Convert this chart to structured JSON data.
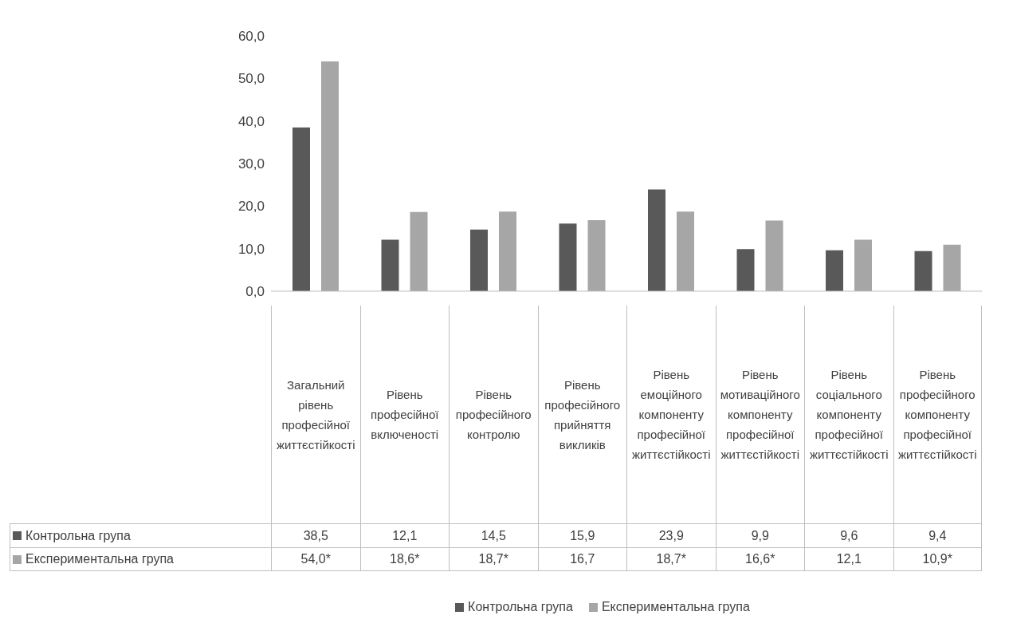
{
  "chart_data": {
    "type": "bar",
    "categories": [
      "Загальний рівень професійної життєстійкості",
      "Рівень професійної включеності",
      "Рівень професійного контролю",
      "Рівень професійного прийняття викликів",
      "Рівень емоційного компоненту професійної життєстійкості",
      "Рівень мотиваційного компоненту професійної життєстійкості",
      "Рівень соціального компоненту професійної життєстійкості",
      "Рівень професійного компоненту професійної життєстійкості"
    ],
    "series": [
      {
        "name": "Контрольна група",
        "color": "#595959",
        "values": [
          38.5,
          12.1,
          14.5,
          15.9,
          23.9,
          9.9,
          9.6,
          9.4
        ],
        "value_labels": [
          "38,5",
          "12,1",
          "14,5",
          "15,9",
          "23,9",
          "9,9",
          "9,6",
          "9,4"
        ]
      },
      {
        "name": "Експериментальна група",
        "color": "#a6a6a6",
        "values": [
          54.0,
          18.6,
          18.7,
          16.7,
          18.7,
          16.6,
          12.1,
          10.9
        ],
        "value_labels": [
          "54,0*",
          "18,6*",
          "18,7*",
          "16,7",
          "18,7*",
          "16,6*",
          "12,1",
          "10,9*"
        ]
      }
    ],
    "ylim": [
      0,
      60
    ],
    "yticks": [
      {
        "value": 0,
        "label": "0,0"
      },
      {
        "value": 10,
        "label": "10,0"
      },
      {
        "value": 20,
        "label": "20,0"
      },
      {
        "value": 30,
        "label": "30,0"
      },
      {
        "value": 40,
        "label": "40,0"
      },
      {
        "value": 50,
        "label": "50,0"
      },
      {
        "value": 60,
        "label": "60,0"
      }
    ],
    "grid": false,
    "legend": "bottom"
  }
}
